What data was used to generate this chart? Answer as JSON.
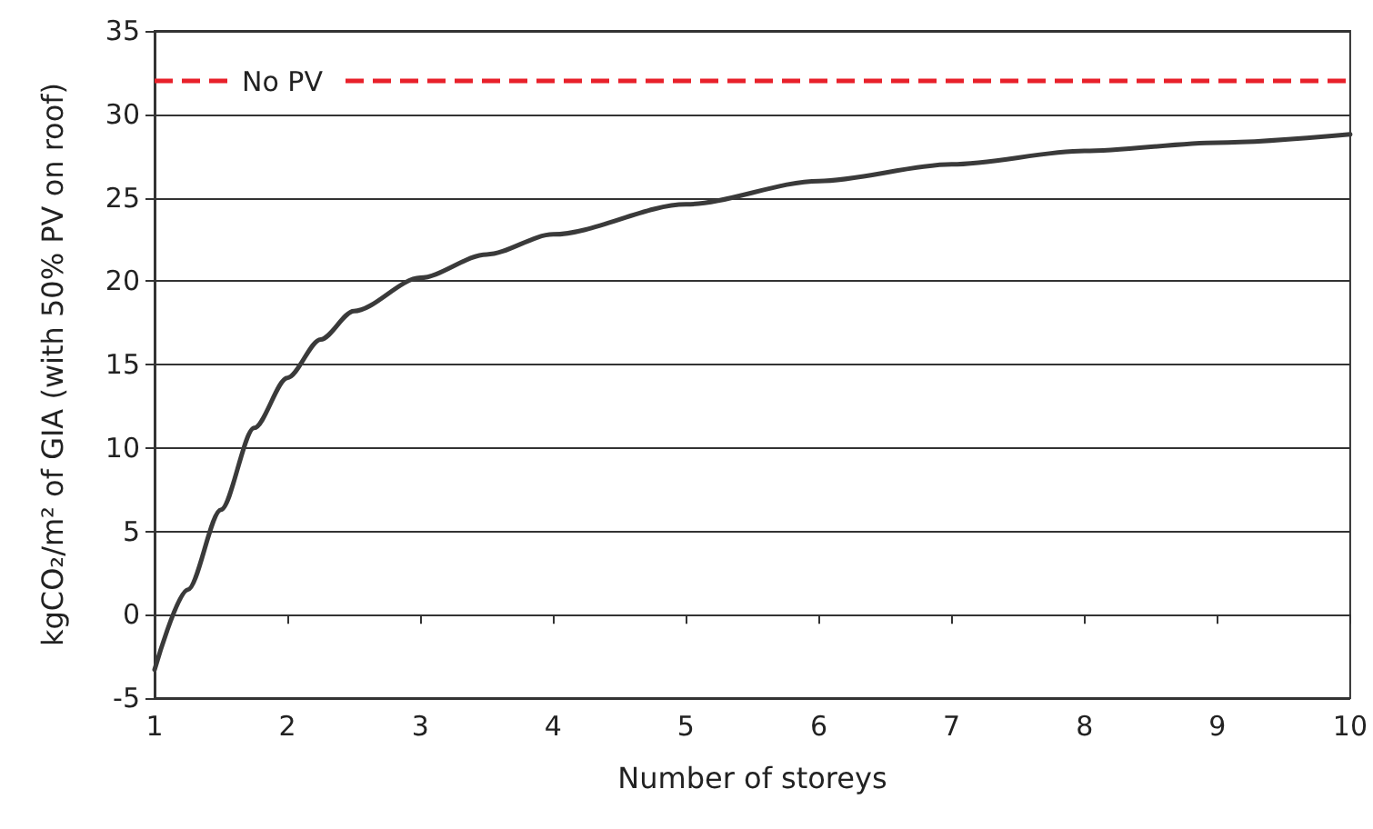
{
  "chart_data": {
    "type": "line",
    "xlabel": "Number of storeys",
    "ylabel": "kgCO₂/m² of GIA (with 50% PV on roof)",
    "series": [
      {
        "color": "#3a3a3a",
        "x": [
          1,
          1.25,
          1.5,
          1.75,
          2,
          2.25,
          2.5,
          3,
          3.5,
          4,
          5,
          6,
          7,
          8,
          9,
          10
        ],
        "values": [
          -3.3,
          1.5,
          6.3,
          11.2,
          14.2,
          16.5,
          18.2,
          20.2,
          21.6,
          22.8,
          24.6,
          26,
          27,
          27.8,
          28.3,
          28.8
        ]
      }
    ],
    "xlim": [
      1,
      10
    ],
    "xticks": [
      1,
      2,
      3,
      4,
      5,
      6,
      7,
      8,
      9,
      10
    ],
    "ylim": [
      -5,
      35
    ],
    "yticks": [
      -5,
      0,
      5,
      10,
      15,
      20,
      25,
      30,
      35
    ],
    "grid": "y",
    "marker": "none",
    "line_style": "solid",
    "ref_lines": [
      {
        "axis": "y",
        "value": 32,
        "label": "No PV",
        "color": "#e8202a",
        "line_style": "dashed"
      }
    ]
  }
}
